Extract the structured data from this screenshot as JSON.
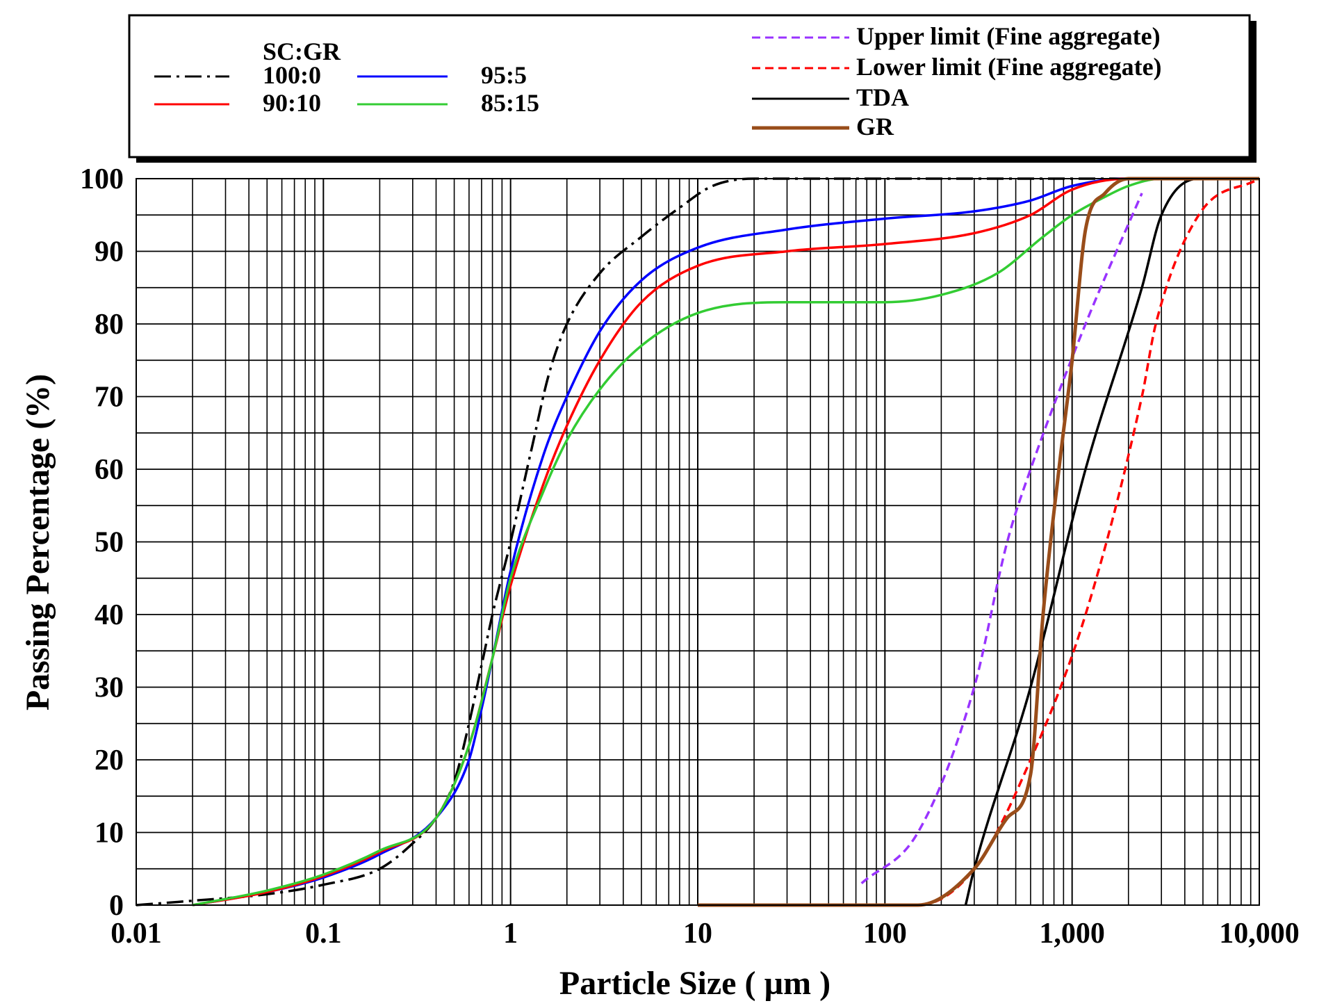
{
  "chart_data": {
    "type": "line",
    "title": "",
    "xlabel": "Particle Size ( µm )",
    "ylabel": "Passing Percentage (%)",
    "xscale": "log",
    "xlim": [
      0.01,
      10000
    ],
    "ylim": [
      0,
      100
    ],
    "grid": true,
    "xticks": [
      0.01,
      0.1,
      1,
      10,
      100,
      1000,
      10000
    ],
    "xtick_labels": [
      "0.01",
      "0.1",
      "1",
      "10",
      "100",
      "1,000",
      "10,000"
    ],
    "yticks": [
      0,
      10,
      20,
      30,
      40,
      50,
      60,
      70,
      80,
      90,
      100
    ],
    "ytick_labels": [
      "0",
      "10",
      "20",
      "30",
      "40",
      "50",
      "60",
      "70",
      "80",
      "90",
      "100"
    ],
    "legend": {
      "group_title": "SC:GR",
      "placement": "top, above plot"
    },
    "series": [
      {
        "name": "100:0",
        "color": "#000000",
        "dash": "dash-dot",
        "points": [
          [
            0.01,
            0
          ],
          [
            0.02,
            0.6
          ],
          [
            0.05,
            1.5
          ],
          [
            0.1,
            2.8
          ],
          [
            0.2,
            5
          ],
          [
            0.3,
            8.5
          ],
          [
            0.4,
            12
          ],
          [
            0.5,
            17
          ],
          [
            0.6,
            25
          ],
          [
            0.7,
            33
          ],
          [
            0.8,
            40
          ],
          [
            1.0,
            50
          ],
          [
            1.3,
            63
          ],
          [
            1.6,
            73
          ],
          [
            2.0,
            80
          ],
          [
            3.0,
            87
          ],
          [
            5.0,
            92
          ],
          [
            8.0,
            96
          ],
          [
            12,
            99
          ],
          [
            20,
            100
          ],
          [
            1000,
            100
          ],
          [
            10000,
            100
          ]
        ]
      },
      {
        "name": "95:5",
        "color": "#0000ff",
        "dash": "solid",
        "points": [
          [
            0.02,
            0
          ],
          [
            0.05,
            1.8
          ],
          [
            0.1,
            3.8
          ],
          [
            0.2,
            7
          ],
          [
            0.4,
            12
          ],
          [
            0.6,
            20
          ],
          [
            0.7,
            27
          ],
          [
            0.8,
            34
          ],
          [
            1.0,
            46
          ],
          [
            1.5,
            62
          ],
          [
            2.0,
            70
          ],
          [
            3.0,
            79
          ],
          [
            5.0,
            86
          ],
          [
            10,
            90.5
          ],
          [
            30,
            93
          ],
          [
            100,
            94.5
          ],
          [
            300,
            95.5
          ],
          [
            600,
            97
          ],
          [
            1000,
            99
          ],
          [
            2000,
            100
          ],
          [
            10000,
            100
          ]
        ]
      },
      {
        "name": "90:10",
        "color": "#ff0000",
        "dash": "solid",
        "points": [
          [
            0.02,
            0
          ],
          [
            0.05,
            1.8
          ],
          [
            0.1,
            4
          ],
          [
            0.2,
            7.3
          ],
          [
            0.4,
            12
          ],
          [
            0.6,
            22
          ],
          [
            0.8,
            34
          ],
          [
            1.0,
            44
          ],
          [
            1.5,
            58
          ],
          [
            2.0,
            66
          ],
          [
            3.0,
            75
          ],
          [
            5.0,
            83
          ],
          [
            10,
            88
          ],
          [
            30,
            90
          ],
          [
            100,
            91
          ],
          [
            300,
            92.5
          ],
          [
            600,
            95
          ],
          [
            1000,
            98.5
          ],
          [
            2000,
            100
          ],
          [
            10000,
            100
          ]
        ]
      },
      {
        "name": "85:15",
        "color": "#33cc33",
        "dash": "solid",
        "points": [
          [
            0.02,
            0
          ],
          [
            0.05,
            2
          ],
          [
            0.1,
            4.2
          ],
          [
            0.2,
            7.5
          ],
          [
            0.4,
            12
          ],
          [
            0.6,
            22
          ],
          [
            0.8,
            34
          ],
          [
            1.0,
            45
          ],
          [
            1.5,
            57
          ],
          [
            2.0,
            64
          ],
          [
            3.0,
            71
          ],
          [
            5.0,
            77
          ],
          [
            10,
            81.5
          ],
          [
            30,
            83
          ],
          [
            100,
            83
          ],
          [
            200,
            84
          ],
          [
            400,
            87
          ],
          [
            700,
            92
          ],
          [
            1000,
            95
          ],
          [
            1500,
            97.5
          ],
          [
            2000,
            99
          ],
          [
            3000,
            100
          ],
          [
            10000,
            100
          ]
        ]
      },
      {
        "name": "Upper limit (Fine aggregate)",
        "color": "#9933ff",
        "dash": "dashed",
        "points": [
          [
            75,
            3
          ],
          [
            150,
            10
          ],
          [
            300,
            30
          ],
          [
            450,
            50
          ],
          [
            600,
            60
          ],
          [
            1180,
            80
          ],
          [
            2360,
            98
          ]
        ]
      },
      {
        "name": "Lower limit (Fine aggregate)",
        "color": "#ff0000",
        "dash": "dashed",
        "points": [
          [
            10,
            0
          ],
          [
            75,
            0
          ],
          [
            150,
            0
          ],
          [
            300,
            5
          ],
          [
            600,
            20
          ],
          [
            1180,
            40
          ],
          [
            2360,
            70
          ],
          [
            2800,
            80
          ],
          [
            4750,
            95
          ],
          [
            10000,
            100
          ]
        ]
      },
      {
        "name": "TDA",
        "color": "#000000",
        "dash": "solid",
        "points": [
          [
            270,
            0
          ],
          [
            300,
            5
          ],
          [
            600,
            30
          ],
          [
            1180,
            60
          ],
          [
            2360,
            85
          ],
          [
            3000,
            95
          ],
          [
            4750,
            100
          ],
          [
            10000,
            100
          ]
        ]
      },
      {
        "name": "GR",
        "color": "#994d1a",
        "dash": "solid",
        "points": [
          [
            10,
            0
          ],
          [
            150,
            0
          ],
          [
            300,
            5
          ],
          [
            450,
            12
          ],
          [
            600,
            18
          ],
          [
            700,
            40
          ],
          [
            850,
            60
          ],
          [
            1000,
            75
          ],
          [
            1180,
            93
          ],
          [
            1500,
            98
          ],
          [
            2000,
            100
          ],
          [
            10000,
            100
          ]
        ]
      }
    ]
  }
}
